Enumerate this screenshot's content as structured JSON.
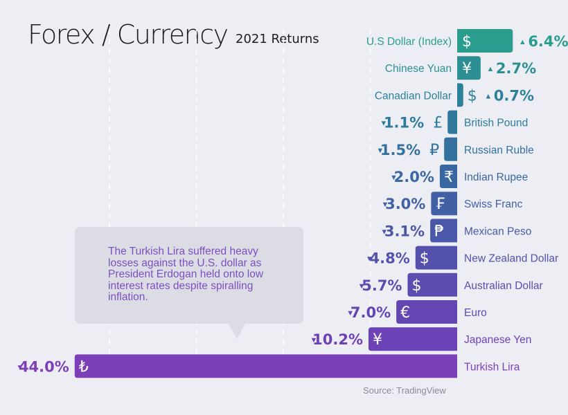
{
  "header": {
    "title": "Forex / Currency",
    "subtitle": "2021 Returns"
  },
  "callout": {
    "text": "The Turkish Lira suffered heavy losses against the U.S. dollar as President Erdogan held onto low interest rates despite spiralling inflation."
  },
  "source": "Source: TradingView",
  "chart_data": {
    "type": "bar",
    "title": "Forex / Currency",
    "subtitle": "2021 Returns",
    "orientation": "horizontal",
    "unit": "%",
    "categories": [
      "U.S Dollar (Index)",
      "Chinese Yuan",
      "Canadian Dollar",
      "British Pound",
      "Russian Ruble",
      "Indian Rupee",
      "Swiss Franc",
      "Mexican Peso",
      "New Zealand Dollar",
      "Australian Dollar",
      "Euro",
      "Japanese Yen",
      "Turkish Lira"
    ],
    "values": [
      6.4,
      2.7,
      0.7,
      -1.1,
      -1.5,
      -2.0,
      -3.0,
      -3.1,
      -4.8,
      -5.7,
      -7.0,
      -10.2,
      -44.0
    ],
    "labels": [
      "6.4%",
      "2.7%",
      "0.7%",
      "1.1%",
      "1.5%",
      "2.0%",
      "3.0%",
      "3.1%",
      "4.8%",
      "5.7%",
      "7.0%",
      "10.2%",
      "44.0%"
    ],
    "symbols": [
      "$",
      "¥",
      "$",
      "£",
      "₽",
      "₹",
      "₣",
      "₱",
      "$",
      "$",
      "€",
      "¥",
      "₺"
    ],
    "colors": [
      "#2a9d8f",
      "#2b8f94",
      "#2c8199",
      "#2f7a9c",
      "#34719f",
      "#3a67a2",
      "#4260a6",
      "#4b58a9",
      "#5451ad",
      "#5c4bb0",
      "#6446b3",
      "#6c42b6",
      "#7d3fb8"
    ],
    "xlim": [
      -44.0,
      6.4
    ],
    "grid": true,
    "arrow_up": "▲",
    "arrow_down": "▼"
  }
}
